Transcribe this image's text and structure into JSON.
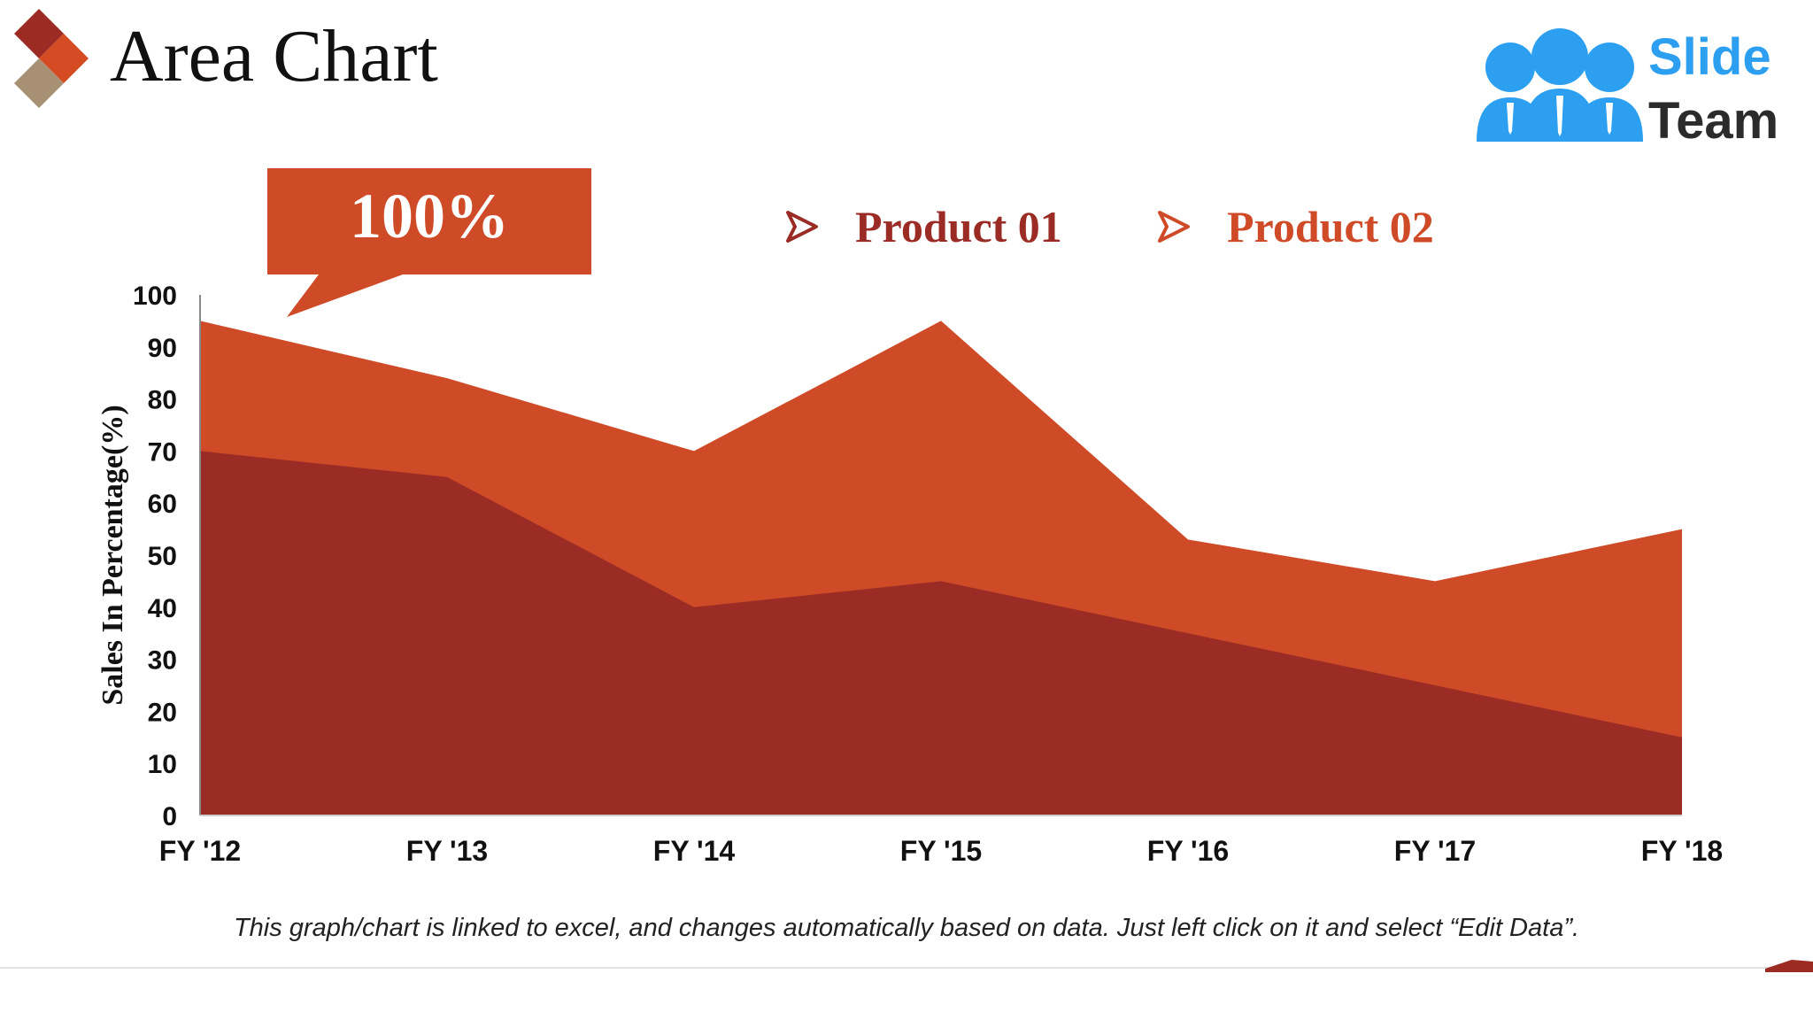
{
  "header": {
    "title": "Area Chart",
    "brand": {
      "line1": "Slide",
      "line2": "Team"
    }
  },
  "callout": {
    "text": "100%"
  },
  "legend": [
    {
      "label": "Product 01",
      "color": "#9a2c25"
    },
    {
      "label": "Product 02",
      "color": "#cf4a27"
    }
  ],
  "colors": {
    "logo_dark_red": "#9b2b23",
    "logo_orange": "#d54b24",
    "logo_tan": "#a89074",
    "brand_blue": "#2c9ff0",
    "brand_text_dark": "#2b2b2b"
  },
  "chart_data": {
    "type": "area",
    "stacked": false,
    "categories": [
      "FY '12",
      "FY '13",
      "FY '14",
      "FY '15",
      "FY '16",
      "FY '17",
      "FY '18"
    ],
    "series": [
      {
        "name": "Product 02",
        "color": "#cf4a27",
        "values": [
          95,
          84,
          70,
          95,
          53,
          45,
          55
        ]
      },
      {
        "name": "Product 01",
        "color": "#9a2c25",
        "values": [
          70,
          65,
          40,
          45,
          35,
          25,
          15
        ]
      }
    ],
    "ylabel": "Sales In Percentage(%)",
    "xlabel": "",
    "ylim": [
      0,
      100
    ],
    "yticks": [
      0,
      10,
      20,
      30,
      40,
      50,
      60,
      70,
      80,
      90,
      100
    ],
    "grid": false,
    "legend_position": "top"
  },
  "footnote": "This graph/chart is linked to excel, and changes automatically based on data. Just left click on it and select “Edit Data”."
}
